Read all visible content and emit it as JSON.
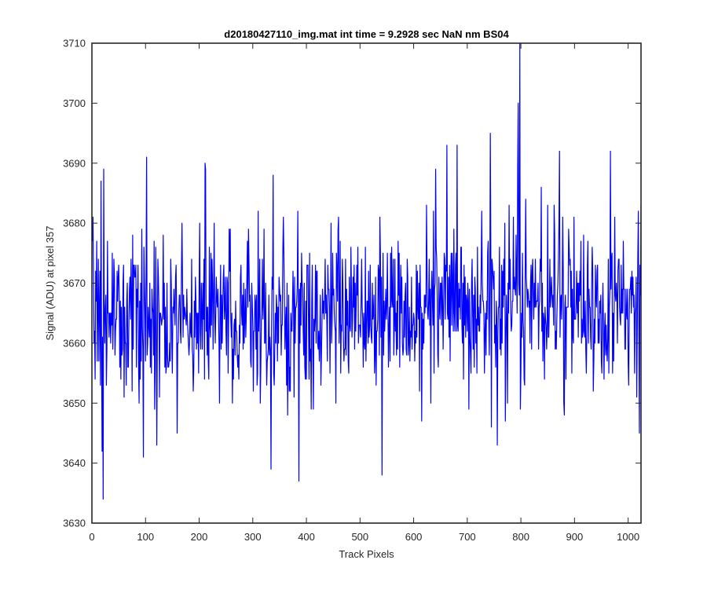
{
  "chart_data": {
    "type": "line",
    "title": "d20180427110_img.mat int time = 9.2928 sec  NaN nm BS04",
    "xlabel": "Track Pixels",
    "ylabel": "Signal (ADU) at pixel 357",
    "xlim": [
      0,
      1024
    ],
    "ylim": [
      3630,
      3710
    ],
    "xticks": [
      0,
      100,
      200,
      300,
      400,
      500,
      600,
      700,
      800,
      900,
      1000
    ],
    "yticks": [
      3630,
      3640,
      3650,
      3660,
      3670,
      3680,
      3690,
      3700,
      3710
    ],
    "grid": false,
    "legend": "none",
    "series": [
      {
        "color": "#0000ff",
        "length": 1024,
        "baseline": 3665,
        "noise_std": 7,
        "highlights": [
          {
            "x": 1,
            "y": 3681
          },
          {
            "x": 5,
            "y": 3654
          },
          {
            "x": 16,
            "y": 3687
          },
          {
            "x": 18,
            "y": 3642
          },
          {
            "x": 20,
            "y": 3634
          },
          {
            "x": 21,
            "y": 3689
          },
          {
            "x": 95,
            "y": 3641
          },
          {
            "x": 101,
            "y": 3691
          },
          {
            "x": 120,
            "y": 3643
          },
          {
            "x": 333,
            "y": 3639
          },
          {
            "x": 337,
            "y": 3688
          },
          {
            "x": 385,
            "y": 3637
          },
          {
            "x": 540,
            "y": 3638
          },
          {
            "x": 640,
            "y": 3689
          },
          {
            "x": 661,
            "y": 3693
          },
          {
            "x": 680,
            "y": 3693
          },
          {
            "x": 742,
            "y": 3695
          },
          {
            "x": 755,
            "y": 3643
          },
          {
            "x": 794,
            "y": 3700
          },
          {
            "x": 797,
            "y": 3710
          },
          {
            "x": 798,
            "y": 3649
          },
          {
            "x": 871,
            "y": 3692
          },
          {
            "x": 966,
            "y": 3692
          },
          {
            "x": 1020,
            "y": 3645
          },
          {
            "x": 1023,
            "y": 3683
          }
        ]
      }
    ]
  }
}
